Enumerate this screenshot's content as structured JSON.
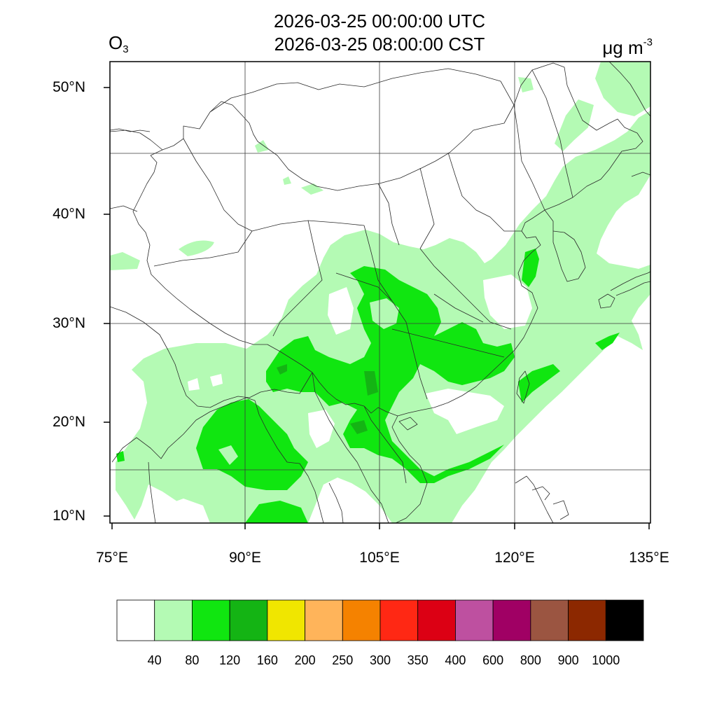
{
  "title": {
    "line1": "2026-03-25 00:00:00 UTC",
    "line2": "2026-03-25 08:00:00 CST"
  },
  "variable": {
    "base": "O",
    "subscript": "3"
  },
  "units": {
    "base": "μg m",
    "exponent": "-3"
  },
  "axes": {
    "lat_labels": [
      "50°N",
      "40°N",
      "30°N",
      "20°N",
      "10°N"
    ],
    "lon_labels": [
      "75°E",
      "90°E",
      "105°E",
      "120°E",
      "135°E"
    ]
  },
  "colorbar": {
    "levels": [
      "40",
      "80",
      "120",
      "160",
      "200",
      "250",
      "300",
      "350",
      "400",
      "600",
      "800",
      "900",
      "1000"
    ],
    "colors": [
      "#ffffff",
      "#b4fab4",
      "#10e610",
      "#14b414",
      "#f0e600",
      "#ffb45a",
      "#f58200",
      "#ff2814",
      "#dc0014",
      "#be50a0",
      "#a00064",
      "#9b5541",
      "#8c2800",
      "#000000"
    ]
  }
}
